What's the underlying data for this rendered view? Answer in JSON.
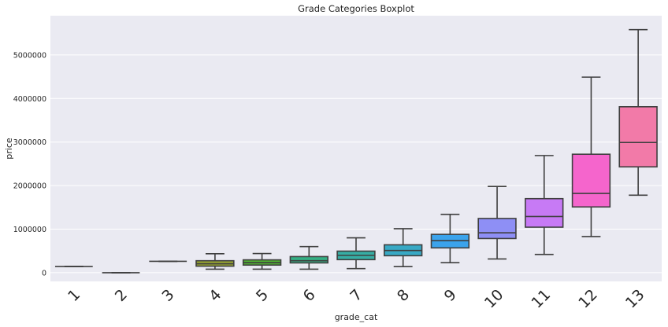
{
  "chart_data": {
    "type": "boxplot",
    "title": "Grade Categories Boxplot",
    "xlabel": "grade_cat",
    "ylabel": "price",
    "categories": [
      "1",
      "2",
      "3",
      "4",
      "5",
      "6",
      "7",
      "8",
      "9",
      "10",
      "11",
      "12",
      "13"
    ],
    "ylim": [
      -200000,
      5900000
    ],
    "yticks": [
      0,
      1000000,
      2000000,
      3000000,
      4000000,
      5000000
    ],
    "ytick_labels": [
      "0",
      "1000000",
      "2000000",
      "3000000",
      "4000000",
      "5000000"
    ],
    "grid": true,
    "legend": "none",
    "background": "#eaeaf2",
    "colors": [
      "#f77189",
      "#e08b32",
      "#bb9832",
      "#97a431",
      "#50b131",
      "#34af84",
      "#36ada4",
      "#38a9c5",
      "#3ba3ec",
      "#8e8ff5",
      "#c77af5",
      "#f565cc",
      "#f27aa8"
    ],
    "boxes": [
      {
        "category": "1",
        "whislo": 142000,
        "q1": 142000,
        "med": 142000,
        "q3": 142000,
        "whishi": 142000
      },
      {
        "category": "2",
        "whislo": 0,
        "q1": 0,
        "med": 0,
        "q3": 0,
        "whishi": 0
      },
      {
        "category": "3",
        "whislo": 262000,
        "q1": 262000,
        "med": 262000,
        "q3": 262000,
        "whishi": 262000
      },
      {
        "category": "4",
        "whislo": 80000,
        "q1": 150000,
        "med": 205000,
        "q3": 275000,
        "whishi": 435000
      },
      {
        "category": "5",
        "whislo": 80000,
        "q1": 175000,
        "med": 230000,
        "q3": 295000,
        "whishi": 440000
      },
      {
        "category": "6",
        "whislo": 80000,
        "q1": 225000,
        "med": 275000,
        "q3": 370000,
        "whishi": 600000
      },
      {
        "category": "7",
        "whislo": 95000,
        "q1": 300000,
        "med": 400000,
        "q3": 495000,
        "whishi": 800000
      },
      {
        "category": "8",
        "whislo": 140000,
        "q1": 390000,
        "med": 510000,
        "q3": 640000,
        "whishi": 1010000
      },
      {
        "category": "9",
        "whislo": 230000,
        "q1": 570000,
        "med": 735000,
        "q3": 880000,
        "whishi": 1340000
      },
      {
        "category": "10",
        "whislo": 315000,
        "q1": 785000,
        "med": 915000,
        "q3": 1245000,
        "whishi": 1980000
      },
      {
        "category": "11",
        "whislo": 420000,
        "q1": 1045000,
        "med": 1290000,
        "q3": 1700000,
        "whishi": 2690000
      },
      {
        "category": "12",
        "whislo": 830000,
        "q1": 1510000,
        "med": 1820000,
        "q3": 2720000,
        "whishi": 4490000
      },
      {
        "category": "13",
        "whislo": 1780000,
        "q1": 2430000,
        "med": 2990000,
        "q3": 3810000,
        "whishi": 5580000
      }
    ]
  }
}
